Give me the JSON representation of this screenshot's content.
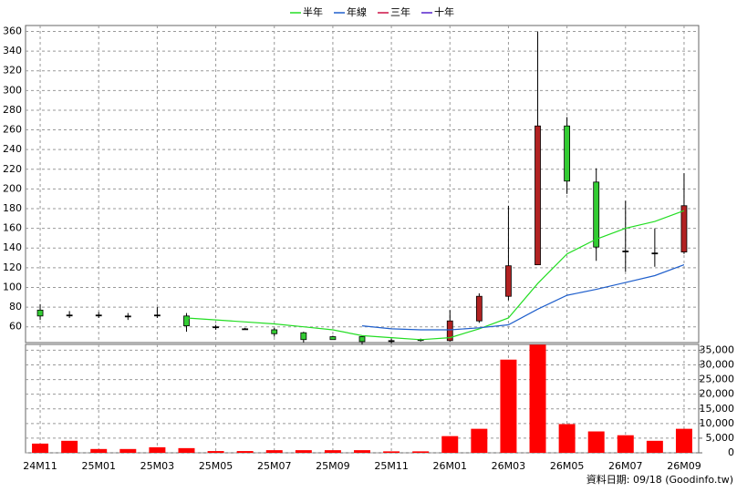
{
  "chart_data": {
    "type": "candlestick",
    "categories": [
      "24M11",
      null,
      "25M01",
      null,
      "25M03",
      null,
      "25M05",
      null,
      "25M07",
      null,
      "25M09",
      null,
      "25M11",
      null,
      "26M01",
      null,
      "26M03",
      null,
      "26M05",
      null,
      "26M07",
      null,
      "26M09"
    ],
    "open": [
      77,
      72,
      72,
      71,
      72,
      71,
      60,
      58,
      57,
      54,
      50,
      50,
      46,
      47,
      46,
      66,
      91,
      123,
      264,
      207,
      137,
      135,
      136
    ],
    "high": [
      83,
      76,
      75,
      74,
      80,
      74,
      62,
      59,
      59,
      55,
      51,
      51,
      48,
      48,
      77,
      94,
      183,
      360,
      273,
      221,
      188,
      160,
      216
    ],
    "low": [
      67,
      69,
      69,
      67,
      69,
      55,
      57,
      57,
      50,
      44,
      47,
      42,
      43,
      45,
      45,
      64,
      87,
      123,
      195,
      127,
      116,
      121,
      134
    ],
    "close": [
      71,
      72,
      72,
      71,
      72,
      61,
      60,
      58,
      53,
      47,
      47,
      45,
      46,
      47,
      66,
      91,
      122,
      264,
      208,
      141,
      137,
      135,
      183
    ],
    "up_color": "#b22222",
    "down_color": "#33cc33",
    "ylim": [
      44,
      366
    ],
    "yticks": [
      60,
      80,
      100,
      120,
      140,
      160,
      180,
      200,
      220,
      240,
      260,
      280,
      300,
      320,
      340,
      360
    ],
    "grid": true,
    "series": [
      {
        "name": "半年",
        "color": "#22dd22",
        "values": [
          null,
          null,
          null,
          null,
          null,
          69,
          67,
          65,
          63,
          60,
          57,
          51,
          49,
          47,
          49,
          58,
          69,
          104,
          134,
          149,
          160,
          167,
          178
        ]
      },
      {
        "name": "年線",
        "color": "#1f5fcc",
        "values": [
          null,
          null,
          null,
          null,
          null,
          null,
          null,
          null,
          null,
          null,
          null,
          61,
          58,
          57,
          57,
          59,
          62,
          78,
          92,
          98,
          105,
          112,
          123
        ]
      },
      {
        "name": "三年",
        "color": "#cc1144",
        "values": [
          null,
          null,
          null,
          null,
          null,
          null,
          null,
          null,
          null,
          null,
          null,
          null,
          null,
          null,
          null,
          null,
          null,
          null,
          null,
          null,
          null,
          null,
          null
        ]
      },
      {
        "name": "十年",
        "color": "#5522cc",
        "values": [
          null,
          null,
          null,
          null,
          null,
          null,
          null,
          null,
          null,
          null,
          null,
          null,
          null,
          null,
          null,
          null,
          null,
          null,
          null,
          null,
          null,
          null,
          null
        ]
      }
    ],
    "volume": {
      "type": "bar",
      "color": "#ff0000",
      "values": [
        3150,
        4100,
        1300,
        1300,
        1900,
        1600,
        600,
        600,
        900,
        900,
        900,
        900,
        500,
        500,
        5700,
        8200,
        31800,
        36900,
        9800,
        7300,
        6000,
        4100,
        8200
      ],
      "ylim": [
        0,
        37000
      ],
      "yticks": [
        0,
        {
          "value": 5000,
          "label": "5,000"
        },
        {
          "value": 10000,
          "label": "10,000"
        },
        {
          "value": 15000,
          "label": "15,000"
        },
        {
          "value": 20000,
          "label": "20,000"
        },
        {
          "value": 25000,
          "label": "25,000"
        },
        {
          "value": 30000,
          "label": "30,000"
        },
        {
          "value": 35000,
          "label": "35,000"
        }
      ]
    },
    "footer": "資料日期: 09/18  (Goodinfo.tw)"
  }
}
